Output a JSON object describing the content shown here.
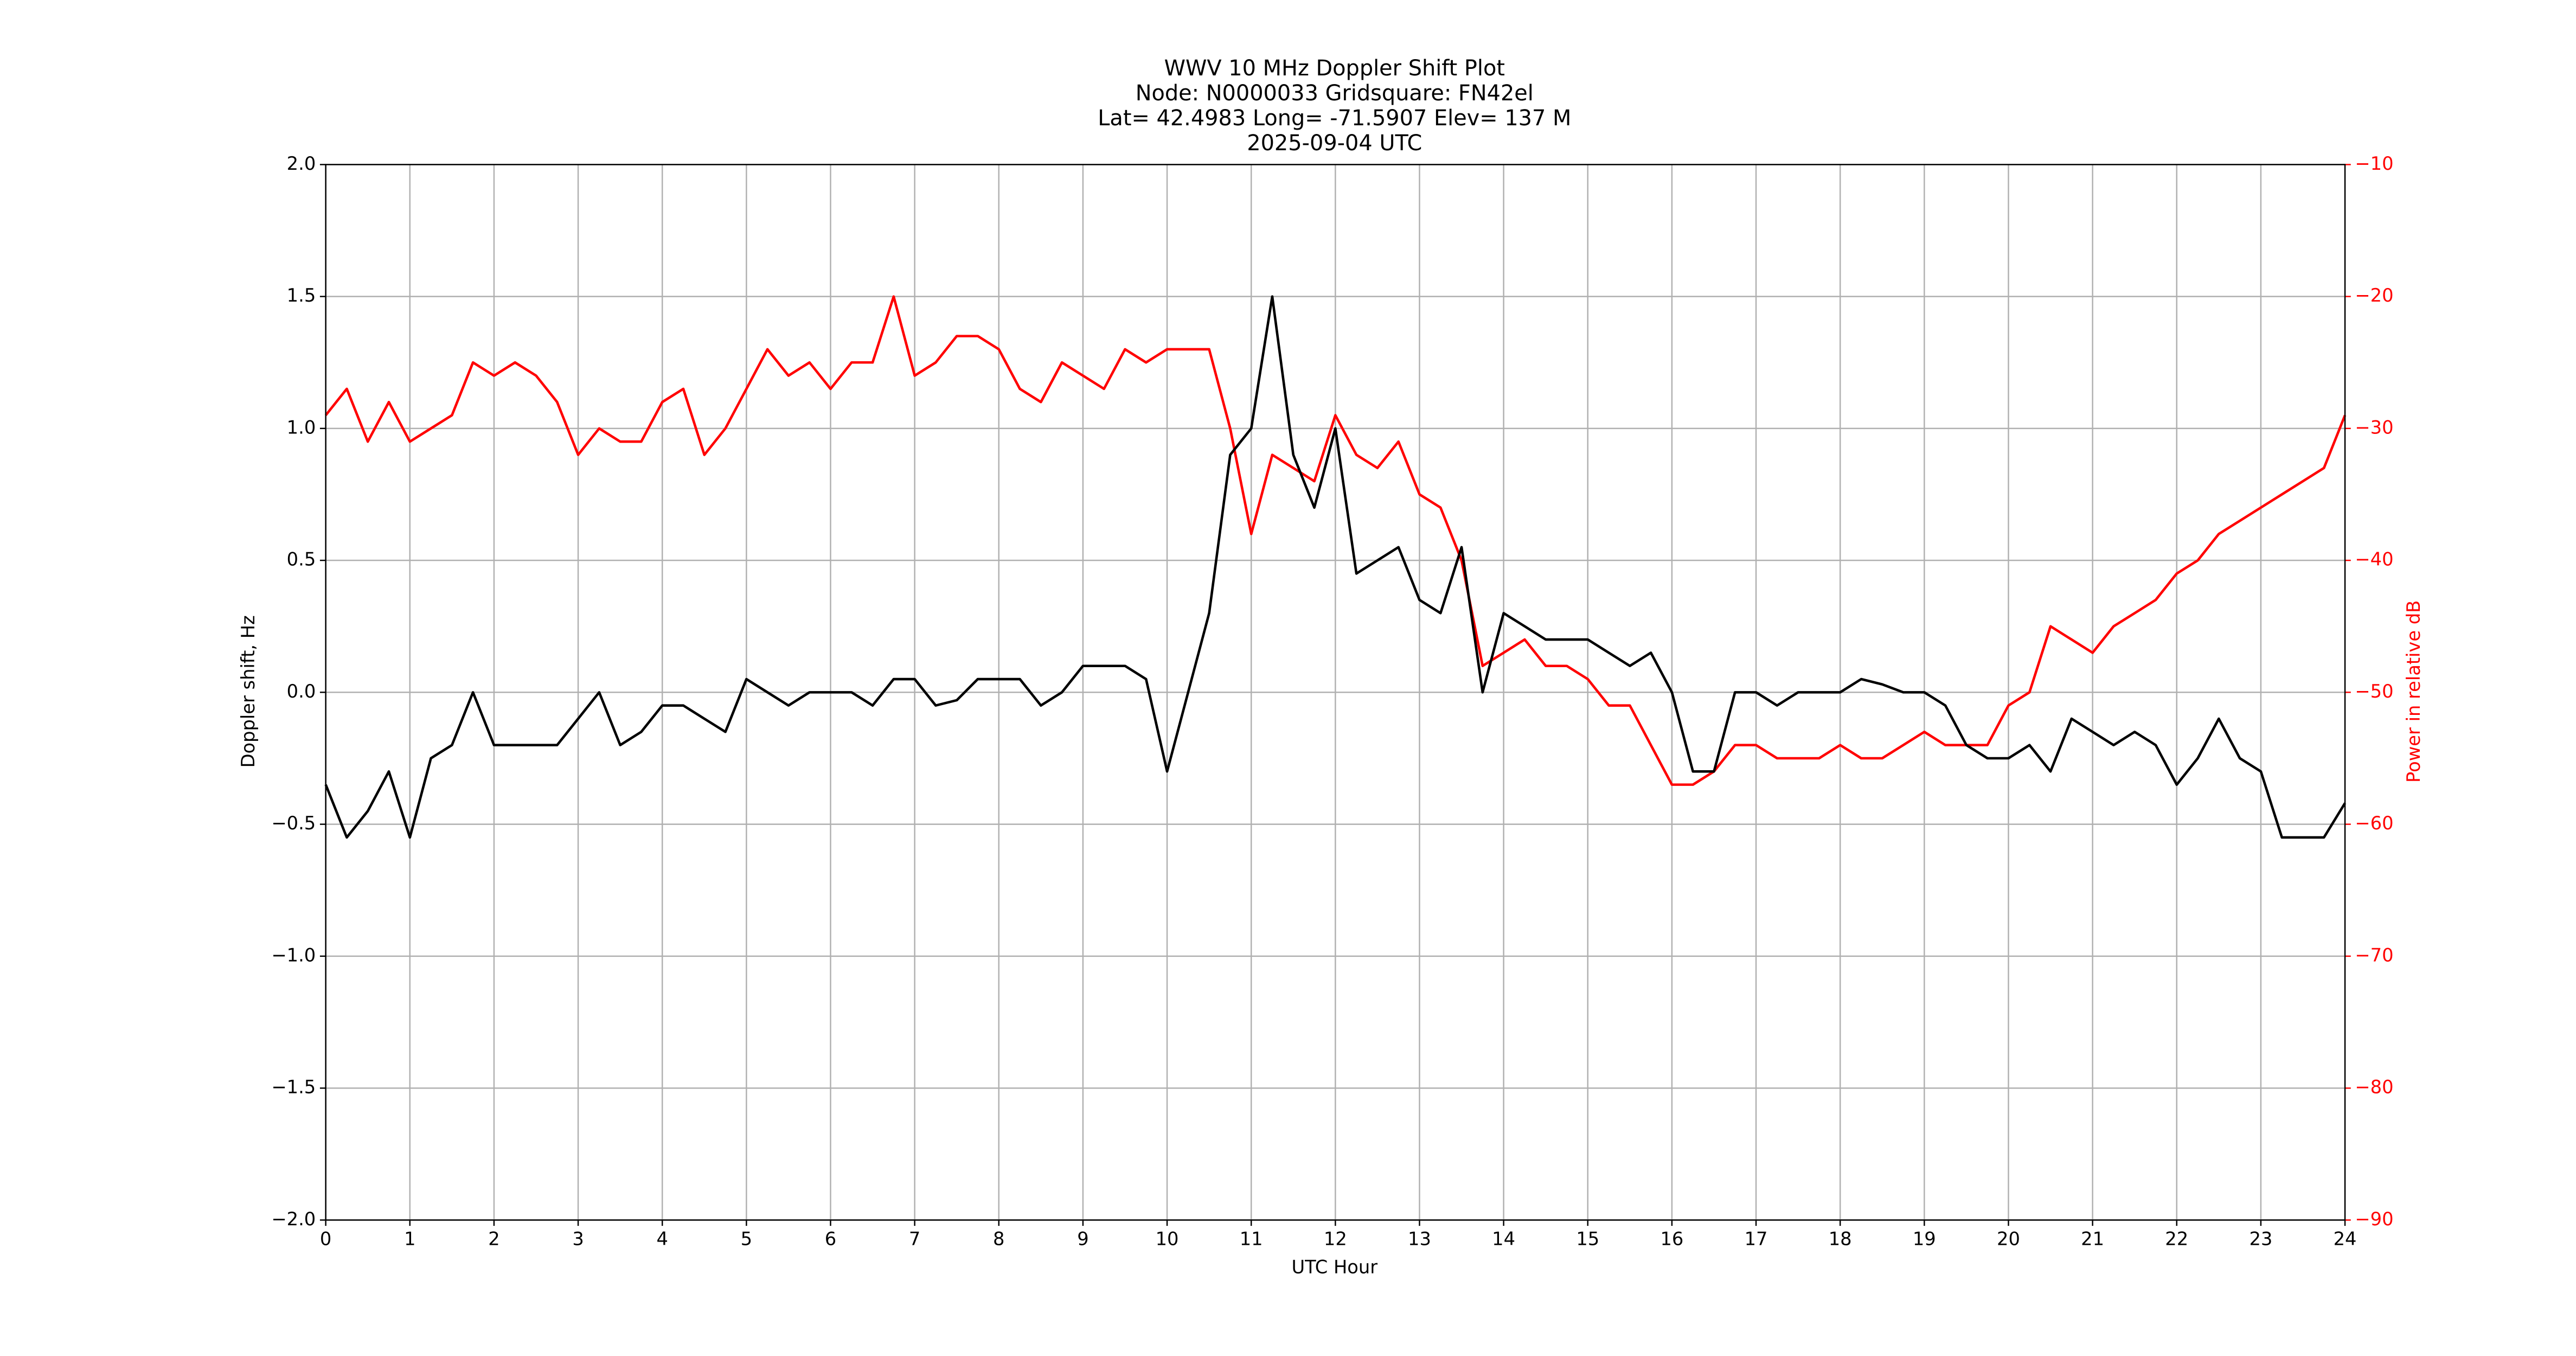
{
  "chart_data": {
    "type": "line",
    "title": "WWV 10 MHz Doppler Shift Plot",
    "subtitle": [
      "Node:  N0000033     Gridsquare:  FN42el",
      "Lat= 42.4983    Long= -71.5907    Elev= 137 M",
      "2025-09-04  UTC"
    ],
    "x_label": "UTC Hour",
    "y_label": "Doppler shift, Hz",
    "y2_label": "Power in relative dB",
    "y2_color": "#ff0000",
    "grid": true,
    "xlim": [
      0,
      24
    ],
    "xticks": [
      0,
      1,
      2,
      3,
      4,
      5,
      6,
      7,
      8,
      9,
      10,
      11,
      12,
      13,
      14,
      15,
      16,
      17,
      18,
      19,
      20,
      21,
      22,
      23,
      24
    ],
    "ylim": [
      -2,
      2
    ],
    "yticks": [
      {
        "value": -2,
        "label": "−2.0"
      },
      {
        "value": -1.5,
        "label": "−1.5"
      },
      {
        "value": -1,
        "label": "−1.0"
      },
      {
        "value": -0.5,
        "label": "−0.5"
      },
      {
        "value": 0,
        "label": "0.0"
      },
      {
        "value": 0.5,
        "label": "0.5"
      },
      {
        "value": 1,
        "label": "1.0"
      },
      {
        "value": 1.5,
        "label": "1.5"
      },
      {
        "value": 2,
        "label": "2.0"
      }
    ],
    "y2lim": [
      -90,
      -10
    ],
    "y2ticks": [
      {
        "value": -90,
        "label": "−90"
      },
      {
        "value": -80,
        "label": "−80"
      },
      {
        "value": -70,
        "label": "−70"
      },
      {
        "value": -60,
        "label": "−60"
      },
      {
        "value": -50,
        "label": "−50"
      },
      {
        "value": -40,
        "label": "−40"
      },
      {
        "value": -30,
        "label": "−30"
      },
      {
        "value": -20,
        "label": "−20"
      },
      {
        "value": -10,
        "label": "−10"
      }
    ],
    "x": [
      0,
      0.25,
      0.5,
      0.75,
      1,
      1.25,
      1.5,
      1.75,
      2,
      2.25,
      2.5,
      2.75,
      3,
      3.25,
      3.5,
      3.75,
      4,
      4.25,
      4.5,
      4.75,
      5,
      5.25,
      5.5,
      5.75,
      6,
      6.25,
      6.5,
      6.75,
      7,
      7.25,
      7.5,
      7.75,
      8,
      8.25,
      8.5,
      8.75,
      9,
      9.25,
      9.5,
      9.75,
      10,
      10.25,
      10.5,
      10.75,
      11,
      11.25,
      11.5,
      11.75,
      12,
      12.25,
      12.5,
      12.75,
      13,
      13.25,
      13.5,
      13.75,
      14,
      14.25,
      14.5,
      14.75,
      15,
      15.25,
      15.5,
      15.75,
      16,
      16.25,
      16.5,
      16.75,
      17,
      17.25,
      17.5,
      17.75,
      18,
      18.25,
      18.5,
      18.75,
      19,
      19.25,
      19.5,
      19.75,
      20,
      20.25,
      20.5,
      20.75,
      21,
      21.25,
      21.5,
      21.75,
      22,
      22.25,
      22.5,
      22.75,
      23,
      23.25,
      23.5,
      23.75,
      24
    ],
    "series": [
      {
        "color": "#000000",
        "values": [
          -0.35,
          -0.55,
          -0.45,
          -0.3,
          -0.55,
          -0.25,
          -0.2,
          0.0,
          -0.2,
          -0.2,
          -0.2,
          -0.2,
          -0.1,
          0.0,
          -0.2,
          -0.15,
          -0.05,
          -0.05,
          -0.1,
          -0.15,
          0.05,
          0.0,
          -0.05,
          0.0,
          0.0,
          0.0,
          -0.05,
          0.05,
          0.05,
          -0.05,
          -0.03,
          0.05,
          0.05,
          0.05,
          -0.05,
          0.0,
          0.1,
          0.1,
          0.1,
          0.05,
          -0.3,
          0.0,
          0.3,
          0.9,
          1.0,
          1.5,
          0.9,
          0.7,
          1.0,
          0.45,
          0.5,
          0.55,
          0.35,
          0.3,
          0.55,
          0.0,
          0.3,
          0.25,
          0.2,
          0.2,
          0.2,
          0.15,
          0.1,
          0.15,
          0.0,
          -0.3,
          -0.3,
          0.0,
          0.0,
          -0.05,
          0.0,
          0.0,
          0.0,
          0.05,
          0.03,
          0.0,
          0.0,
          -0.05,
          -0.2,
          -0.25,
          -0.25,
          -0.2,
          -0.3,
          -0.1,
          -0.15,
          -0.2,
          -0.15,
          -0.2,
          -0.35,
          -0.25,
          -0.1,
          -0.25,
          -0.3,
          -0.55,
          -0.55,
          -0.55,
          -0.42
        ]
      },
      {
        "color": "#ff0000",
        "axis": "y2",
        "values": [
          -29,
          -27,
          -31,
          -28,
          -31,
          -30,
          -29,
          -25,
          -26,
          -25,
          -26,
          -28,
          -32,
          -30,
          -31,
          -31,
          -28,
          -27,
          -32,
          -30,
          -27,
          -24,
          -26,
          -25,
          -27,
          -25,
          -25,
          -20,
          -26,
          -25,
          -23,
          -23,
          -24,
          -27,
          -28,
          -25,
          -26,
          -27,
          -24,
          -25,
          -24,
          -24,
          -24,
          -30,
          -38,
          -32,
          -33,
          -34,
          -29,
          -32,
          -33,
          -31,
          -35,
          -36,
          -40,
          -48,
          -47,
          -46,
          -48,
          -48,
          -49,
          -51,
          -51,
          -54,
          -57,
          -57,
          -56,
          -54,
          -54,
          -55,
          -55,
          -55,
          -54,
          -55,
          -55,
          -54,
          -53,
          -54,
          -54,
          -54,
          -51,
          -50,
          -45,
          -46,
          -47,
          -45,
          -44,
          -43,
          -41,
          -40,
          -38,
          -37,
          -36,
          -35,
          -34,
          -33,
          -29
        ]
      }
    ]
  }
}
